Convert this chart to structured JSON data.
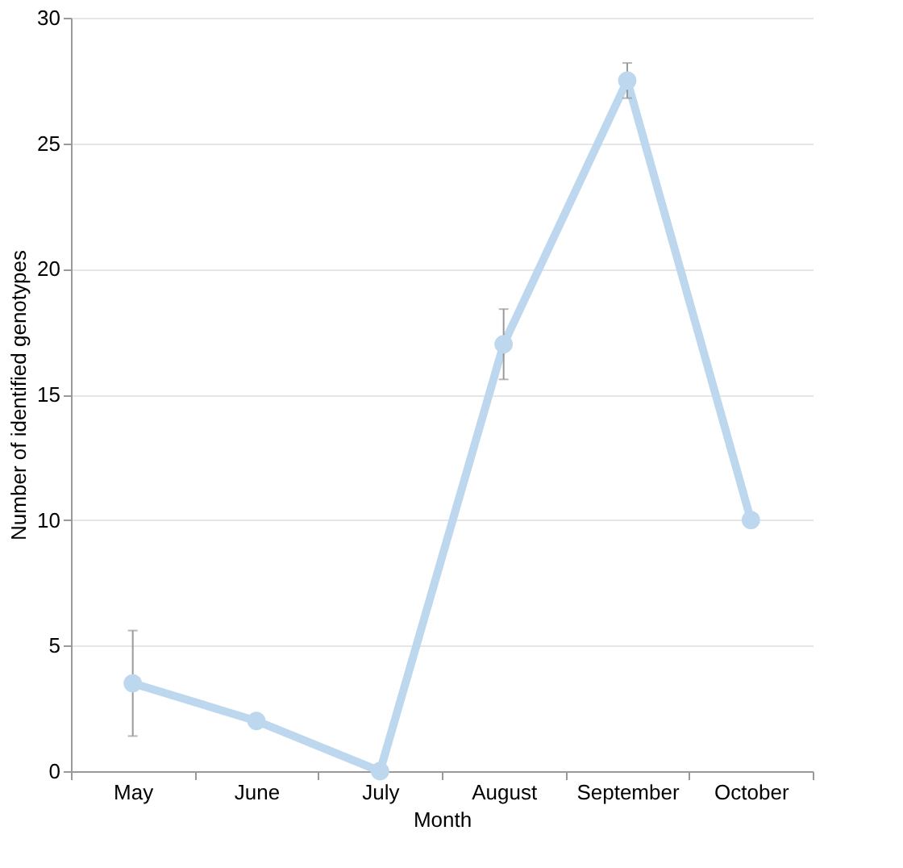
{
  "chart_data": {
    "type": "line",
    "xlabel": "Month",
    "ylabel": "Number of identified genotypes",
    "categories": [
      "May",
      "June",
      "July",
      "August",
      "September",
      "October"
    ],
    "series": [
      {
        "color": "#bdd7ee",
        "values": [
          3.5,
          2,
          0,
          17,
          27.5,
          10
        ],
        "errors": [
          2.1,
          null,
          null,
          1.4,
          0.7,
          null
        ]
      }
    ],
    "ylim": [
      0,
      30
    ],
    "yticks": [
      0,
      5,
      10,
      15,
      20,
      25,
      30
    ],
    "grid": "y",
    "marker": "circle",
    "line_style": "solid"
  }
}
